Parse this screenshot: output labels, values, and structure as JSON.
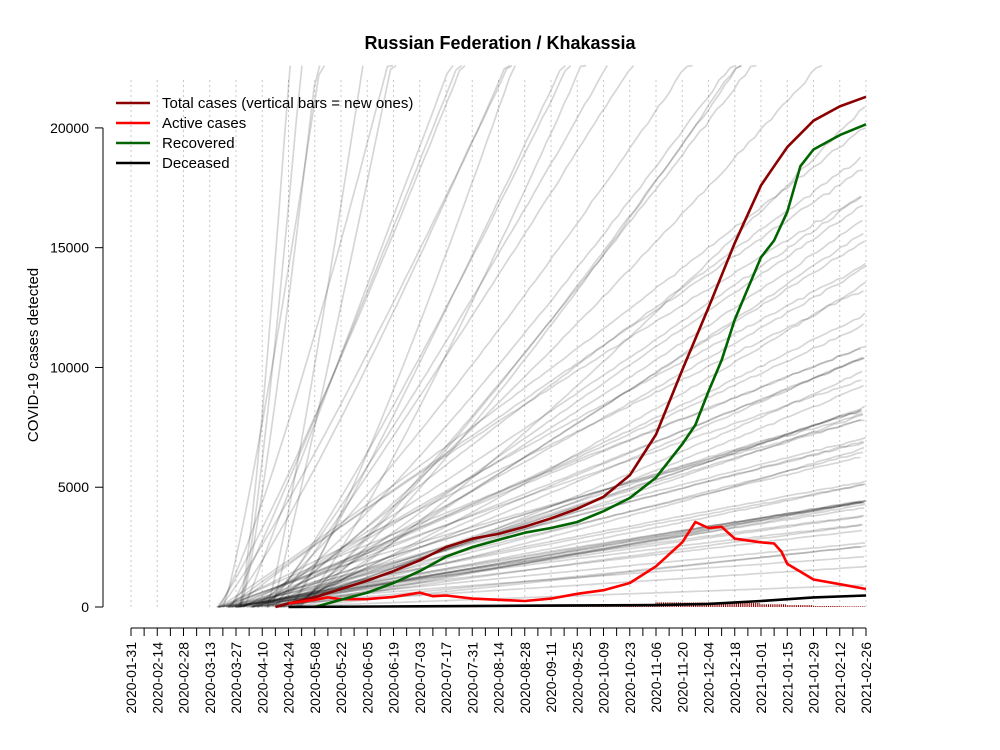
{
  "chart_data": {
    "type": "line",
    "title": "Russian Federation / Khakassia",
    "xlabel": "",
    "ylabel": "COVID-19 cases detected",
    "x_ticks": [
      "2020-01-31",
      "2020-02-14",
      "2020-02-28",
      "2020-03-13",
      "2020-03-27",
      "2020-04-10",
      "2020-04-24",
      "2020-05-08",
      "2020-05-22",
      "2020-06-05",
      "2020-06-19",
      "2020-07-03",
      "2020-07-17",
      "2020-07-31",
      "2020-08-14",
      "2020-08-28",
      "2020-09-11",
      "2020-09-25",
      "2020-10-09",
      "2020-10-23",
      "2020-11-06",
      "2020-11-20",
      "2020-12-04",
      "2020-12-18",
      "2021-01-01",
      "2021-01-15",
      "2021-01-29",
      "2021-02-12",
      "2021-02-26"
    ],
    "y_ticks": [
      0,
      5000,
      10000,
      15000,
      20000
    ],
    "ylim": [
      -500,
      22000
    ],
    "xlim": [
      "2020-01-31",
      "2021-02-26"
    ],
    "grid": "vertical dotted lines every 14 days",
    "legend": {
      "position": "top-left",
      "entries": [
        {
          "label": "Total cases (vertical bars = new ones)",
          "color": "#8b0000"
        },
        {
          "label": "Active cases",
          "color": "#ff0000"
        },
        {
          "label": "Recovered",
          "color": "#006400"
        },
        {
          "label": "Deceased",
          "color": "#000000"
        }
      ]
    },
    "series": [
      {
        "name": "Total cases",
        "color": "#8b0000",
        "points": [
          [
            "2020-04-17",
            0
          ],
          [
            "2020-04-24",
            150
          ],
          [
            "2020-05-08",
            400
          ],
          [
            "2020-05-22",
            750
          ],
          [
            "2020-06-05",
            1100
          ],
          [
            "2020-06-19",
            1500
          ],
          [
            "2020-07-03",
            1950
          ],
          [
            "2020-07-17",
            2500
          ],
          [
            "2020-07-31",
            2850
          ],
          [
            "2020-08-14",
            3050
          ],
          [
            "2020-08-28",
            3350
          ],
          [
            "2020-09-11",
            3700
          ],
          [
            "2020-09-25",
            4100
          ],
          [
            "2020-10-09",
            4600
          ],
          [
            "2020-10-23",
            5500
          ],
          [
            "2020-11-06",
            7200
          ],
          [
            "2020-11-20",
            9900
          ],
          [
            "2020-12-04",
            12500
          ],
          [
            "2020-12-18",
            15200
          ],
          [
            "2021-01-01",
            17600
          ],
          [
            "2021-01-08",
            18400
          ],
          [
            "2021-01-15",
            19200
          ],
          [
            "2021-01-29",
            20300
          ],
          [
            "2021-02-12",
            20900
          ],
          [
            "2021-02-26",
            21300
          ]
        ]
      },
      {
        "name": "Active cases",
        "color": "#ff0000",
        "points": [
          [
            "2020-04-24",
            150
          ],
          [
            "2020-05-08",
            300
          ],
          [
            "2020-05-15",
            400
          ],
          [
            "2020-05-22",
            320
          ],
          [
            "2020-06-05",
            330
          ],
          [
            "2020-06-19",
            420
          ],
          [
            "2020-07-03",
            600
          ],
          [
            "2020-07-10",
            450
          ],
          [
            "2020-07-17",
            480
          ],
          [
            "2020-07-31",
            350
          ],
          [
            "2020-08-14",
            300
          ],
          [
            "2020-08-28",
            250
          ],
          [
            "2020-09-11",
            350
          ],
          [
            "2020-09-25",
            550
          ],
          [
            "2020-10-09",
            700
          ],
          [
            "2020-10-23",
            1000
          ],
          [
            "2020-11-06",
            1700
          ],
          [
            "2020-11-20",
            2700
          ],
          [
            "2020-11-27",
            3550
          ],
          [
            "2020-12-04",
            3300
          ],
          [
            "2020-12-11",
            3350
          ],
          [
            "2020-12-18",
            2850
          ],
          [
            "2021-01-01",
            2700
          ],
          [
            "2021-01-08",
            2650
          ],
          [
            "2021-01-12",
            2300
          ],
          [
            "2021-01-15",
            1800
          ],
          [
            "2021-01-29",
            1150
          ],
          [
            "2021-02-12",
            950
          ],
          [
            "2021-02-26",
            750
          ]
        ]
      },
      {
        "name": "Recovered",
        "color": "#006400",
        "points": [
          [
            "2020-05-08",
            0
          ],
          [
            "2020-05-22",
            300
          ],
          [
            "2020-06-05",
            600
          ],
          [
            "2020-06-19",
            1000
          ],
          [
            "2020-07-03",
            1500
          ],
          [
            "2020-07-17",
            2100
          ],
          [
            "2020-07-31",
            2500
          ],
          [
            "2020-08-14",
            2800
          ],
          [
            "2020-08-28",
            3100
          ],
          [
            "2020-09-11",
            3300
          ],
          [
            "2020-09-25",
            3550
          ],
          [
            "2020-10-09",
            4000
          ],
          [
            "2020-10-23",
            4550
          ],
          [
            "2020-11-06",
            5400
          ],
          [
            "2020-11-20",
            6800
          ],
          [
            "2020-11-27",
            7600
          ],
          [
            "2020-12-04",
            9000
          ],
          [
            "2020-12-11",
            10300
          ],
          [
            "2020-12-18",
            12000
          ],
          [
            "2021-01-01",
            14600
          ],
          [
            "2021-01-08",
            15300
          ],
          [
            "2021-01-15",
            16500
          ],
          [
            "2021-01-22",
            18400
          ],
          [
            "2021-01-29",
            19100
          ],
          [
            "2021-02-12",
            19700
          ],
          [
            "2021-02-26",
            20150
          ]
        ]
      },
      {
        "name": "Deceased",
        "color": "#000000",
        "points": [
          [
            "2020-04-24",
            0
          ],
          [
            "2020-07-03",
            30
          ],
          [
            "2020-09-11",
            60
          ],
          [
            "2020-11-06",
            80
          ],
          [
            "2020-12-04",
            130
          ],
          [
            "2021-01-01",
            250
          ],
          [
            "2021-01-29",
            400
          ],
          [
            "2021-02-26",
            480
          ]
        ]
      }
    ],
    "background_series": [
      {
        "peak_series": [
          [
            78,
            0
          ],
          [
            90,
            12000
          ],
          [
            100,
            22000
          ]
        ]
      },
      {
        "peak_series": [
          [
            68,
            0
          ],
          [
            83,
            10000
          ],
          [
            95,
            22000
          ]
        ]
      },
      {
        "peak_series": [
          [
            60,
            0
          ],
          [
            80,
            12000
          ],
          [
            100,
            22000
          ]
        ]
      }
    ]
  }
}
